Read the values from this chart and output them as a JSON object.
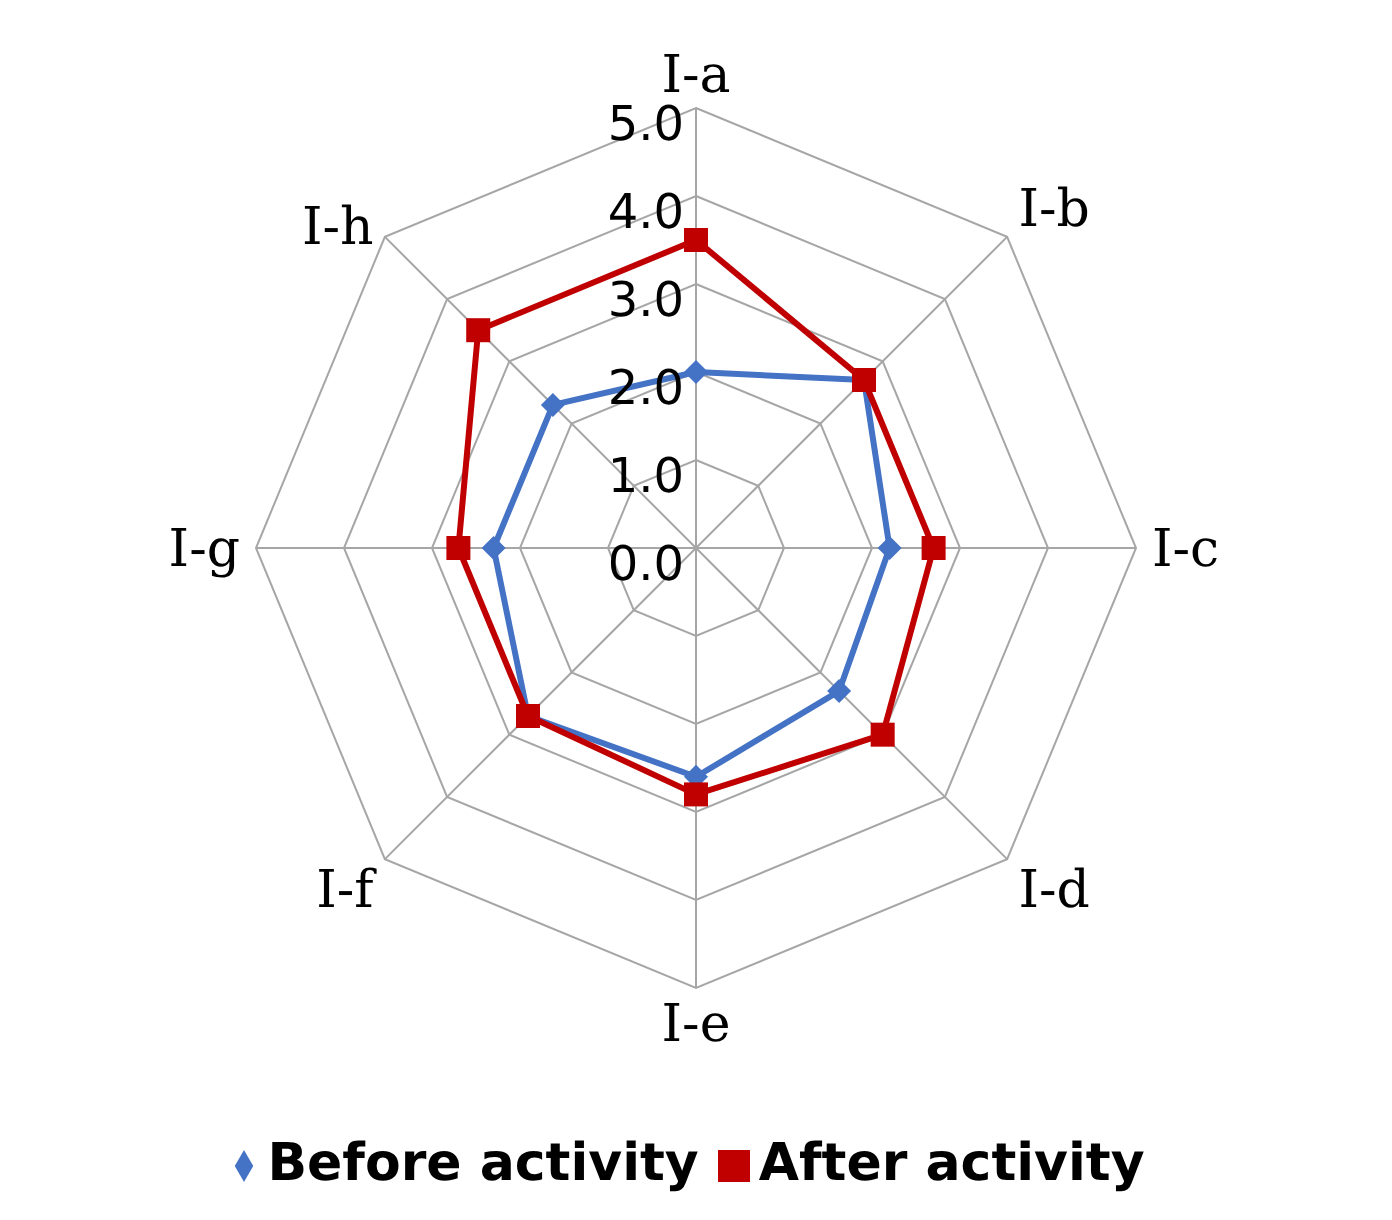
{
  "chart_data": {
    "type": "radar",
    "categories": [
      "Ⅰ-a",
      "Ⅰ-b",
      "Ⅰ-c",
      "Ⅰ-d",
      "Ⅰ-e",
      "Ⅰ-f",
      "Ⅰ-g",
      "Ⅰ-h"
    ],
    "ylim": [
      0,
      5
    ],
    "yticks": [
      {
        "value": 0,
        "label": "0.0"
      },
      {
        "value": 1,
        "label": "1.0"
      },
      {
        "value": 2,
        "label": "2.0"
      },
      {
        "value": 3,
        "label": "3.0"
      },
      {
        "value": 4,
        "label": "4.0"
      },
      {
        "value": 5,
        "label": "5.0"
      }
    ],
    "grid": true,
    "legend": "bottom",
    "series": [
      {
        "name": "Before activity",
        "color": "#4472c4",
        "marker": "diamond",
        "values": [
          2.0,
          2.7,
          2.2,
          2.3,
          2.6,
          2.7,
          2.3,
          2.3
        ]
      },
      {
        "name": "After activity",
        "color": "#c00000",
        "marker": "square",
        "values": [
          3.5,
          2.7,
          2.7,
          3.0,
          2.8,
          2.7,
          2.7,
          3.5
        ]
      }
    ]
  }
}
